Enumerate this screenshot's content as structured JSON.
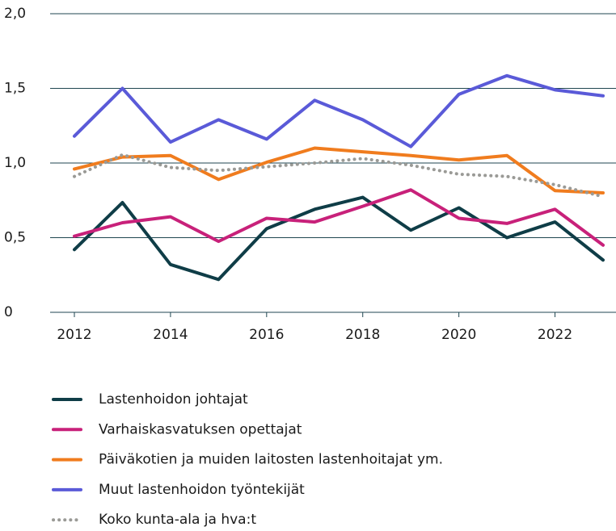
{
  "chart_data": {
    "type": "line",
    "x": [
      2012,
      2013,
      2014,
      2015,
      2016,
      2017,
      2018,
      2019,
      2020,
      2021,
      2022,
      2023
    ],
    "xlim": [
      2012,
      2023
    ],
    "xticks": [
      2012,
      2014,
      2016,
      2018,
      2020,
      2022
    ],
    "ylim": [
      0,
      2
    ],
    "yticks": [
      0,
      {
        "value": 0.5,
        "label": "0,5"
      },
      {
        "value": 1,
        "label": "1,0"
      },
      {
        "value": 1.5,
        "label": "1,5"
      },
      {
        "value": 2,
        "label": "2,0"
      }
    ],
    "grid": true,
    "legend": "bottom",
    "series": [
      {
        "name": "Lastenhoidon johtajat",
        "color": "#0f3d47",
        "values": [
          0.42,
          0.735,
          0.32,
          0.22,
          0.56,
          0.69,
          0.77,
          0.55,
          0.7,
          0.5,
          0.605,
          0.35
        ]
      },
      {
        "name": "Varhaiskasvatuksen opettajat",
        "color": "#c8217a",
        "values": [
          0.51,
          0.6,
          0.64,
          0.475,
          0.63,
          0.605,
          0.71,
          0.82,
          0.63,
          0.595,
          0.69,
          0.45
        ]
      },
      {
        "name": "Päiväkotien ja muiden laitosten lastenhoitajat ym.",
        "color": "#f07c1e",
        "values": [
          0.96,
          1.04,
          1.05,
          0.89,
          1.005,
          1.1,
          1.075,
          1.05,
          1.02,
          1.05,
          0.815,
          0.8
        ]
      },
      {
        "name": "Muut lastenhoidon työntekijät",
        "color": "#5a5ad8",
        "values": [
          1.18,
          1.5,
          1.14,
          1.29,
          1.16,
          1.42,
          1.29,
          1.11,
          1.46,
          1.585,
          1.49,
          1.45
        ]
      },
      {
        "name": "Koko kunta-ala ja hva:t",
        "color": "#9a9a96",
        "dash": "dotted",
        "values": [
          0.91,
          1.055,
          0.97,
          0.95,
          0.975,
          1.0,
          1.03,
          0.985,
          0.925,
          0.91,
          0.855,
          0.775
        ]
      }
    ]
  }
}
